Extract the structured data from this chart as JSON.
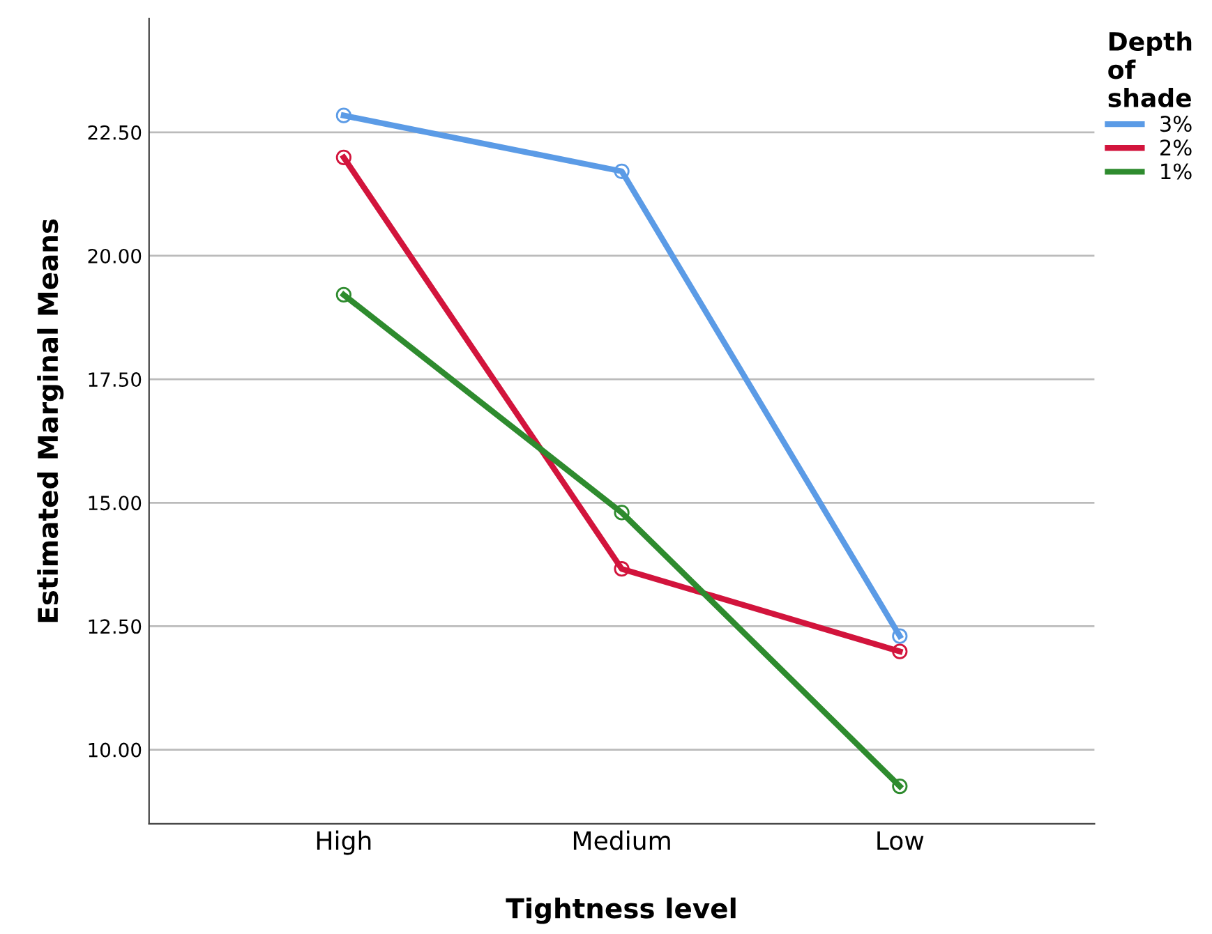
{
  "chart_data": {
    "type": "line",
    "xlabel": "Tightness level",
    "ylabel": "Estimated Marginal Means",
    "legend_title": "Depth\nof\nshade",
    "categories": [
      "High",
      "Medium",
      "Low"
    ],
    "series": [
      {
        "name": "3%",
        "color": "#5b9be6",
        "values": [
          22.84,
          21.71,
          12.3
        ]
      },
      {
        "name": "2%",
        "color": "#d2143c",
        "values": [
          21.99,
          13.66,
          11.99
        ]
      },
      {
        "name": "1%",
        "color": "#2e8b2e",
        "values": [
          19.21,
          14.8,
          9.26
        ]
      }
    ],
    "ylim": [
      8.5,
      24.8
    ],
    "yticks": [
      {
        "value": 10,
        "label": "10.00"
      },
      {
        "value": 12.5,
        "label": "12.50"
      },
      {
        "value": 15,
        "label": "15.00"
      },
      {
        "value": 17.5,
        "label": "17.50"
      },
      {
        "value": 20,
        "label": "20.00"
      },
      {
        "value": 22.5,
        "label": "22.50"
      }
    ],
    "grid": "y",
    "legend": "top right",
    "marker": "circle",
    "line_style": "solid"
  }
}
